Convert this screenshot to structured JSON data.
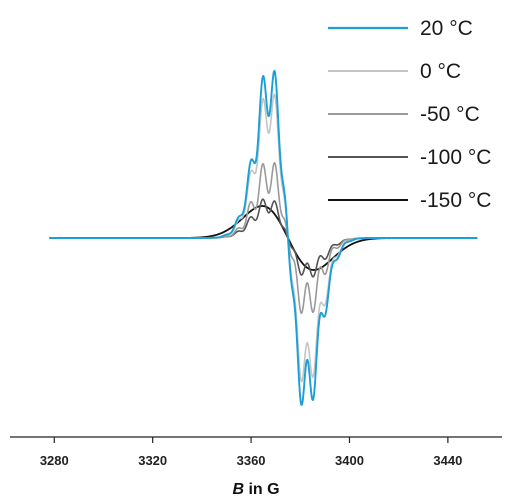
{
  "chart_data": {
    "type": "line",
    "title": "",
    "xlabel": {
      "symbol": "B",
      "rest": " in G"
    },
    "ylabel": "",
    "xlim": [
      3262,
      3462
    ],
    "ylim": [
      -1.05,
      1.05
    ],
    "x_ticks": [
      {
        "value": 3280,
        "label": "3280"
      },
      {
        "value": 3320,
        "label": "3320"
      },
      {
        "value": 3360,
        "label": "3360"
      },
      {
        "value": 3400,
        "label": "3400"
      },
      {
        "value": 3440,
        "label": "3440"
      }
    ],
    "grid": false,
    "legend_position": "top-right",
    "center": 3375,
    "series": [
      {
        "name": "20 °C",
        "color": "#1a9fd6",
        "width": 1.9,
        "amp": 1.0,
        "sigma": 7.5,
        "hf": 0.2,
        "hyperfine": true
      },
      {
        "name": "0 °C",
        "color": "#c4c4c4",
        "width": 1.6,
        "amp": 0.86,
        "sigma": 7.5,
        "hf": 0.2,
        "hyperfine": true
      },
      {
        "name": "-50 °C",
        "color": "#9a9a9a",
        "width": 1.6,
        "amp": 0.42,
        "sigma": 7.6,
        "hf": 0.3,
        "hyperfine": true
      },
      {
        "name": "-100 °C",
        "color": "#555555",
        "width": 1.6,
        "amp": 0.22,
        "sigma": 8.0,
        "hf": 0.25,
        "hyperfine": true
      },
      {
        "name": "-150 °C",
        "color": "#111111",
        "width": 1.8,
        "amp": 0.21,
        "sigma": 10.5,
        "hf": 0.0,
        "hyperfine": false
      }
    ]
  }
}
